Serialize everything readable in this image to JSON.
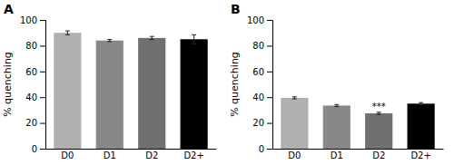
{
  "chart_data": [
    {
      "type": "bar",
      "title": "A",
      "categories": [
        "D0",
        "D1",
        "D2",
        "D2+"
      ],
      "values": [
        90,
        84,
        86,
        85
      ],
      "errors": [
        1.5,
        0.8,
        1.2,
        3.5
      ],
      "colors": [
        "#b0b0b0",
        "#888888",
        "#707070",
        "#000000"
      ],
      "ylabel": "% quenching",
      "ylim": [
        0,
        100
      ],
      "yticks": [
        0,
        20,
        40,
        60,
        80,
        100
      ],
      "grid": false
    },
    {
      "type": "bar",
      "title": "B",
      "categories": [
        "D0",
        "D1",
        "D2",
        "D2+"
      ],
      "values": [
        39.5,
        33.5,
        27.5,
        35
      ],
      "errors": [
        0.8,
        0.8,
        0.8,
        0.8
      ],
      "colors": [
        "#b0b0b0",
        "#888888",
        "#707070",
        "#000000"
      ],
      "ylabel": "% quenching",
      "ylim": [
        0,
        100
      ],
      "yticks": [
        0,
        20,
        40,
        60,
        80,
        100
      ],
      "grid": false,
      "annotations": [
        {
          "text": "***",
          "category": "D2"
        }
      ]
    }
  ]
}
